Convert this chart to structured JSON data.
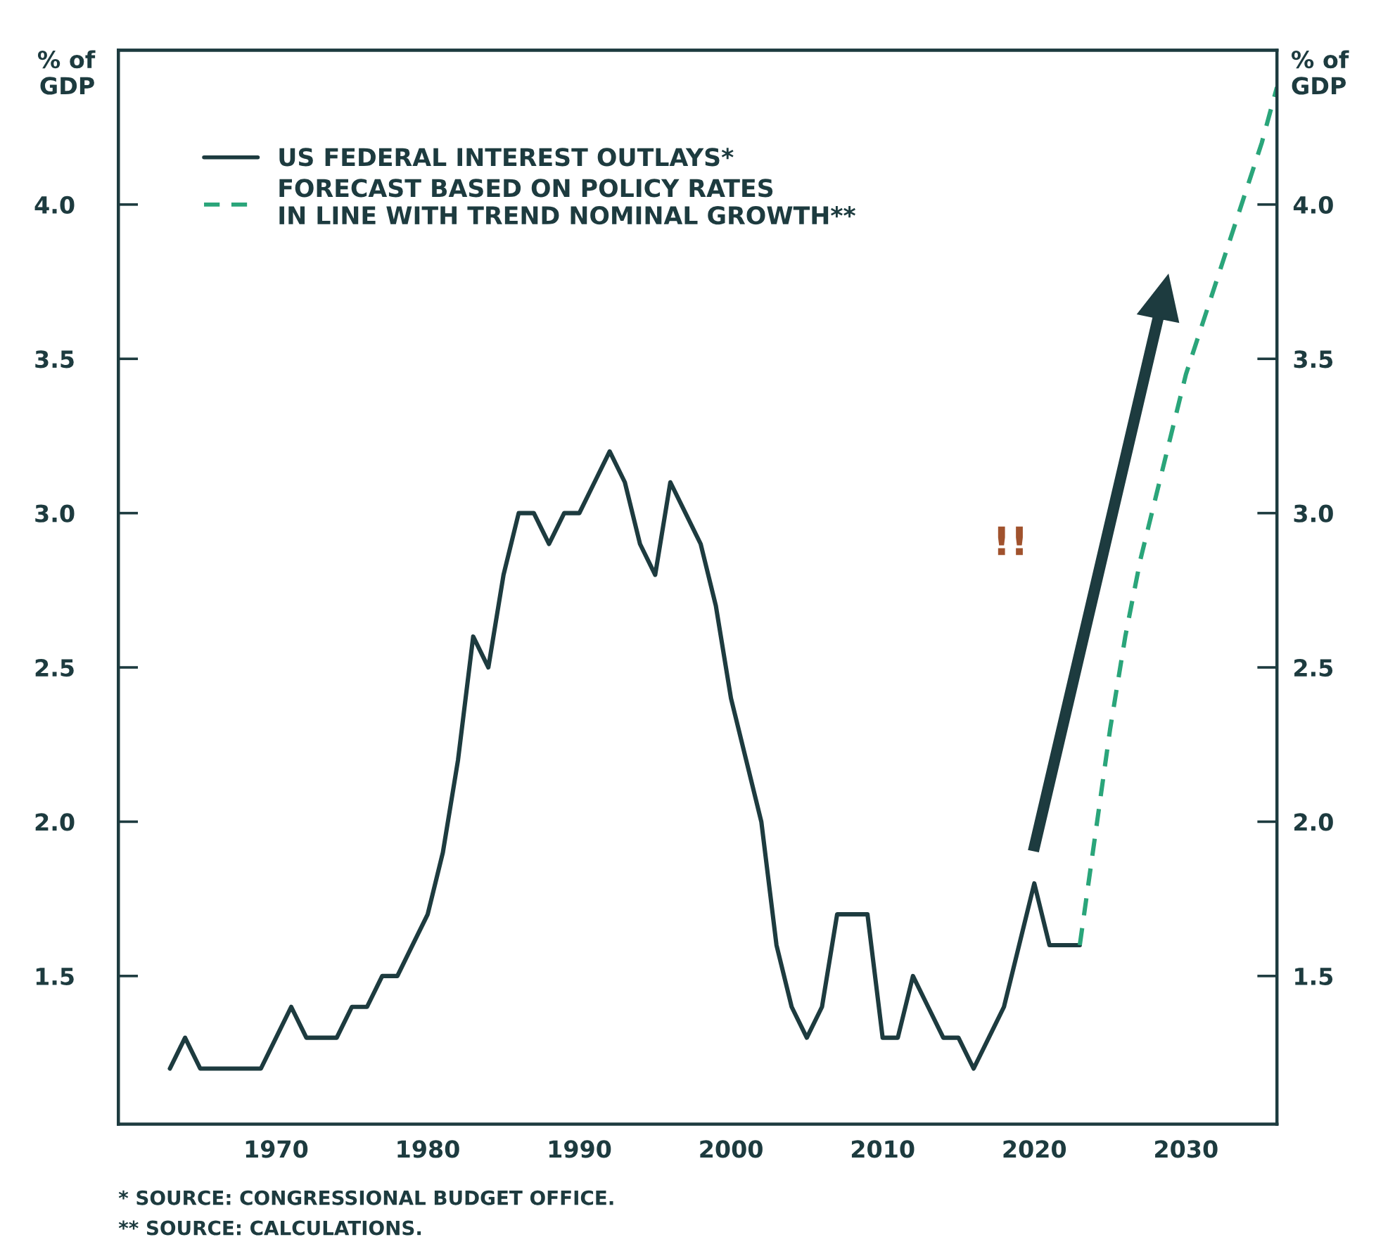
{
  "chart_data": {
    "type": "line",
    "ylabel": "% of\nGDP",
    "y2label": "% of\nGDP",
    "xlim": [
      1959.6,
      2036
    ],
    "xticks": [
      1970,
      1980,
      1990,
      2000,
      2010,
      2020,
      2030
    ],
    "ylim": [
      1.02,
      4.5
    ],
    "yticks": [
      1.5,
      {
        "value": 2,
        "label": "2.0"
      },
      2.5,
      {
        "value": 3,
        "label": "3.0"
      },
      3.5,
      {
        "value": 4,
        "label": "4.0"
      }
    ],
    "y2lim": [
      1.02,
      4.5
    ],
    "y2ticks": [
      1.5,
      {
        "value": 2,
        "label": "2.0"
      },
      2.5,
      {
        "value": 3,
        "label": "3.0"
      },
      3.5,
      {
        "value": 4,
        "label": "4.0"
      }
    ],
    "series": [
      {
        "name": "US FEDERAL INTEREST OUTLAYS*",
        "color": "#1d3b3f",
        "line_style": "solid",
        "x": [
          1963,
          1964,
          1965,
          1966,
          1967,
          1968,
          1969,
          1970,
          1971,
          1972,
          1973,
          1974,
          1975,
          1976,
          1977,
          1978,
          1979,
          1980,
          1981,
          1982,
          1983,
          1984,
          1985,
          1986,
          1987,
          1988,
          1989,
          1990,
          1991,
          1992,
          1993,
          1994,
          1995,
          1996,
          1997,
          1998,
          1999,
          2000,
          2001,
          2002,
          2003,
          2004,
          2005,
          2006,
          2007,
          2008,
          2009,
          2010,
          2011,
          2012,
          2013,
          2014,
          2015,
          2016,
          2017,
          2018,
          2019,
          2020,
          2021,
          2022,
          2023
        ],
        "values": [
          1.2,
          1.3,
          1.2,
          1.2,
          1.2,
          1.2,
          1.2,
          1.3,
          1.4,
          1.3,
          1.3,
          1.3,
          1.4,
          1.4,
          1.5,
          1.5,
          1.6,
          1.7,
          1.9,
          2.2,
          2.6,
          2.5,
          2.8,
          3.0,
          3.0,
          2.9,
          3.0,
          3.0,
          3.1,
          3.2,
          3.1,
          2.9,
          2.8,
          3.1,
          3.0,
          2.9,
          2.7,
          2.4,
          2.2,
          2.0,
          1.6,
          1.4,
          1.3,
          1.4,
          1.7,
          1.7,
          1.7,
          1.3,
          1.3,
          1.5,
          1.4,
          1.3,
          1.3,
          1.2,
          1.3,
          1.4,
          1.6,
          1.8,
          1.6,
          1.6,
          1.6
        ]
      },
      {
        "name": "FORECAST BASED ON POLICY RATES\nIN LINE WITH TREND NOMINAL GROWTH**",
        "color": "#2aa57a",
        "line_style": "dashed",
        "x": [
          2023,
          2024,
          2025,
          2026,
          2027,
          2028,
          2029,
          2030,
          2031,
          2032,
          2033,
          2034,
          2035,
          2036
        ],
        "values": [
          1.6,
          1.95,
          2.3,
          2.6,
          2.85,
          3.05,
          3.25,
          3.45,
          3.6,
          3.75,
          3.9,
          4.05,
          4.2,
          4.38
        ]
      }
    ],
    "legend": "top left",
    "grid": false,
    "annotations": [
      "!!",
      "* SOURCE: CONGRESSIONAL BUDGET OFFICE.",
      "** SOURCE: CALCULATIONS."
    ]
  }
}
